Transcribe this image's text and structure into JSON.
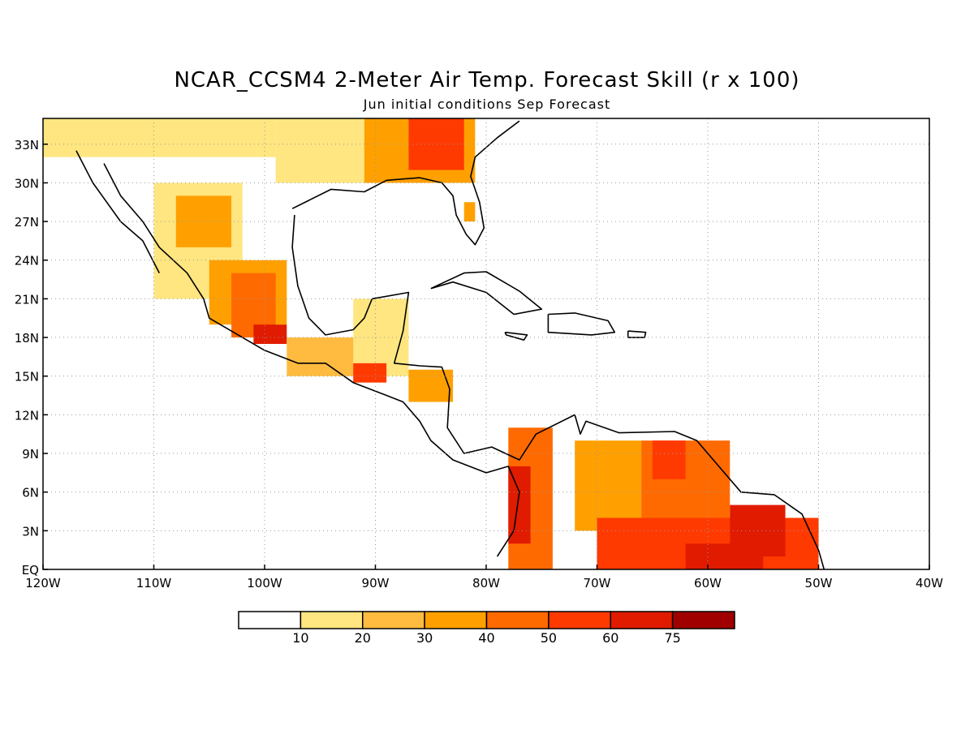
{
  "title": "NCAR_CCSM4 2-Meter Air Temp. Forecast Skill (r x 100)",
  "subtitle": "Jun initial conditions  Sep Forecast",
  "map": {
    "lon_range": [
      -120,
      -40
    ],
    "lat_range": [
      0,
      35
    ],
    "lon_ticks": [
      {
        "value": -120,
        "label": "120W"
      },
      {
        "value": -110,
        "label": "110W"
      },
      {
        "value": -100,
        "label": "100W"
      },
      {
        "value": -90,
        "label": "90W"
      },
      {
        "value": -80,
        "label": "80W"
      },
      {
        "value": -70,
        "label": "70W"
      },
      {
        "value": -60,
        "label": "60W"
      },
      {
        "value": -50,
        "label": "50W"
      },
      {
        "value": -40,
        "label": "40W"
      }
    ],
    "lat_ticks": [
      {
        "value": 0,
        "label": "EQ"
      },
      {
        "value": 3,
        "label": "3N"
      },
      {
        "value": 6,
        "label": "6N"
      },
      {
        "value": 9,
        "label": "9N"
      },
      {
        "value": 12,
        "label": "12N"
      },
      {
        "value": 15,
        "label": "15N"
      },
      {
        "value": 18,
        "label": "18N"
      },
      {
        "value": 21,
        "label": "21N"
      },
      {
        "value": 24,
        "label": "24N"
      },
      {
        "value": 27,
        "label": "27N"
      },
      {
        "value": 30,
        "label": "30N"
      },
      {
        "value": 33,
        "label": "33N"
      }
    ],
    "grid": "dotted",
    "regions": [
      {
        "lon": [
          -120,
          -99
        ],
        "lat": [
          32,
          35
        ],
        "level": 1
      },
      {
        "lon": [
          -99,
          -82
        ],
        "lat": [
          30,
          35
        ],
        "level": 1
      },
      {
        "lon": [
          -91,
          -81
        ],
        "lat": [
          30,
          35
        ],
        "level": 3
      },
      {
        "lon": [
          -87,
          -82
        ],
        "lat": [
          31,
          35
        ],
        "level": 5
      },
      {
        "lon": [
          -110,
          -102
        ],
        "lat": [
          21,
          30
        ],
        "level": 1
      },
      {
        "lon": [
          -108,
          -103
        ],
        "lat": [
          25,
          29
        ],
        "level": 3
      },
      {
        "lon": [
          -105,
          -98
        ],
        "lat": [
          19,
          24
        ],
        "level": 3
      },
      {
        "lon": [
          -103,
          -99
        ],
        "lat": [
          18,
          23
        ],
        "level": 4
      },
      {
        "lon": [
          -101,
          -98
        ],
        "lat": [
          17.5,
          19
        ],
        "level": 6
      },
      {
        "lon": [
          -98,
          -90
        ],
        "lat": [
          15,
          18
        ],
        "level": 2
      },
      {
        "lon": [
          -92,
          -87
        ],
        "lat": [
          15,
          21
        ],
        "level": 1
      },
      {
        "lon": [
          -92,
          -89
        ],
        "lat": [
          14.5,
          16
        ],
        "level": 5
      },
      {
        "lon": [
          -87,
          -83
        ],
        "lat": [
          13,
          15.5
        ],
        "level": 3
      },
      {
        "lon": [
          -82,
          -81
        ],
        "lat": [
          27,
          28.5
        ],
        "level": 3
      },
      {
        "lon": [
          -78,
          -74
        ],
        "lat": [
          0,
          11
        ],
        "level": 4
      },
      {
        "lon": [
          -78,
          -76
        ],
        "lat": [
          2,
          8
        ],
        "level": 6
      },
      {
        "lon": [
          -72,
          -66
        ],
        "lat": [
          3,
          10
        ],
        "level": 3
      },
      {
        "lon": [
          -66,
          -58
        ],
        "lat": [
          2,
          10
        ],
        "level": 4
      },
      {
        "lon": [
          -65,
          -62
        ],
        "lat": [
          7,
          10
        ],
        "level": 5
      },
      {
        "lon": [
          -70,
          -50
        ],
        "lat": [
          0,
          4
        ],
        "level": 5
      },
      {
        "lon": [
          -58,
          -53
        ],
        "lat": [
          1,
          5
        ],
        "level": 6
      },
      {
        "lon": [
          -62,
          -55
        ],
        "lat": [
          0,
          2
        ],
        "level": 6
      }
    ]
  },
  "colorbar": {
    "colors": [
      "#ffffff",
      "#ffe680",
      "#ffbb3f",
      "#ffa000",
      "#ff6a00",
      "#ff3a00",
      "#e01b00",
      "#a00000"
    ],
    "labels": [
      "10",
      "20",
      "30",
      "40",
      "50",
      "60",
      "75"
    ]
  }
}
